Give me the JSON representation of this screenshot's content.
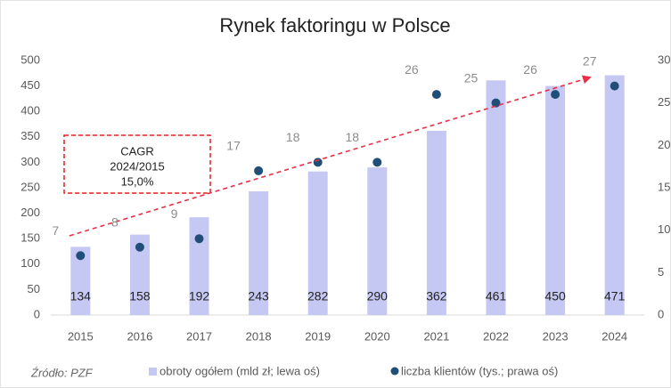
{
  "chart_data": {
    "type": "bar",
    "title": "Rynek faktoringu w Polsce",
    "categories": [
      "2015",
      "2016",
      "2017",
      "2018",
      "2019",
      "2020",
      "2021",
      "2022",
      "2023",
      "2024"
    ],
    "series": [
      {
        "name": "obroty ogółem (mld zł; lewa oś)",
        "type": "bar",
        "color": "#c5c8f2",
        "values": [
          134,
          158,
          192,
          243,
          282,
          290,
          362,
          461,
          450,
          471
        ]
      },
      {
        "name": "liczba klientów (tys.; prawa oś)",
        "type": "scatter",
        "axis": "y2",
        "color": "#1f4e79",
        "values": [
          7,
          8,
          9,
          17,
          18,
          18,
          26,
          25,
          26,
          27
        ]
      }
    ],
    "ylim": [
      0,
      500
    ],
    "yticks": [
      0,
      50,
      100,
      150,
      200,
      250,
      300,
      350,
      400,
      450,
      500
    ],
    "y2lim": [
      0,
      30
    ],
    "y2ticks": [
      0,
      5,
      10,
      15,
      20,
      25,
      30
    ],
    "annotation": {
      "lines": [
        "CAGR",
        "2024/2015",
        "15,0%"
      ]
    },
    "source": "Źródło: PZF",
    "legend": "bottom"
  }
}
